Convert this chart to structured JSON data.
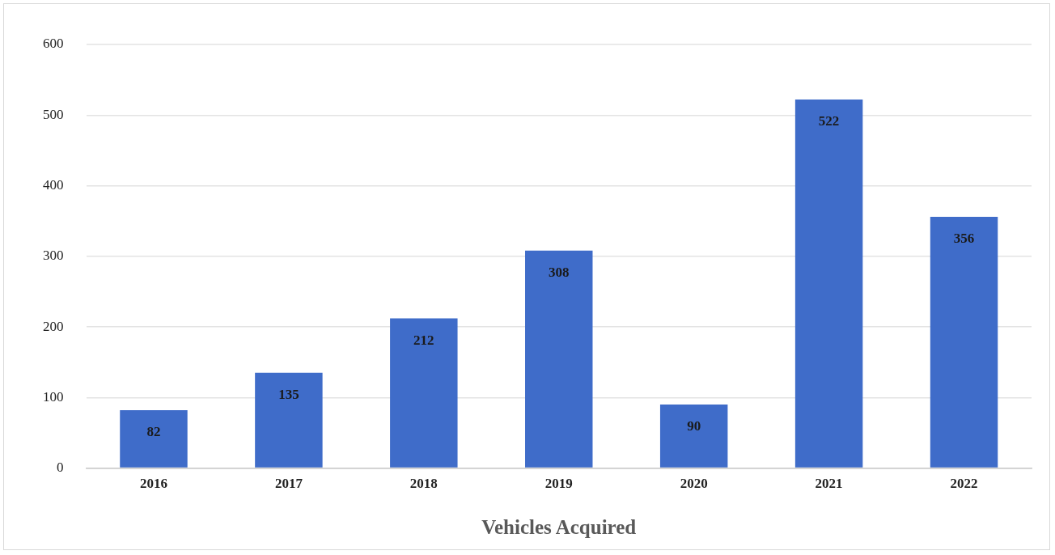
{
  "chart_data": {
    "type": "bar",
    "xlabel": "Vehicles Acquired",
    "categories": [
      "2016",
      "2017",
      "2018",
      "2019",
      "2020",
      "2021",
      "2022"
    ],
    "values": [
      82,
      135,
      212,
      308,
      90,
      522,
      356
    ],
    "color": "#3f6cc9",
    "ylim": [
      0,
      600
    ],
    "yticks": [
      0,
      100,
      200,
      300,
      400,
      500,
      600
    ],
    "grid": "y",
    "legend": false,
    "data_labels": true
  }
}
